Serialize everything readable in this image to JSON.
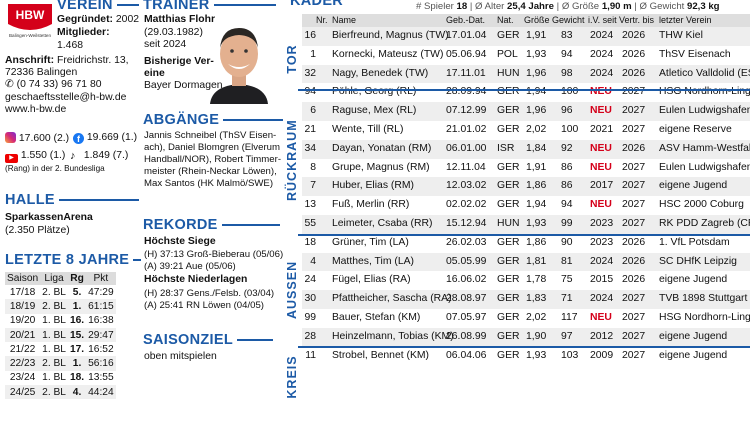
{
  "logo": {
    "text": "HBW",
    "subtext": "Balingen-Weilstetten",
    "color": "#d4001a"
  },
  "verein": {
    "heading": "VEREIN",
    "gegruendet_label": "Gegründet:",
    "gegruendet_value": "2002",
    "mitglieder_label": "Mitglieder:",
    "mitglieder_value": "1.468",
    "anschrift_label": "Anschrift:",
    "anschrift_line1": "Freidrichstr. 13,",
    "anschrift_line2": "72336 Balingen",
    "phone": "(0 74 33) 96 71 80",
    "email": "geschaeftsstelle@h-bw.de",
    "web": "www.h-bw.de",
    "social": {
      "instagram": "17.600 (2.)",
      "facebook": "19.669 (1.)",
      "youtube": "1.550 (1.)",
      "tiktok": "1.849 (7.)",
      "note": "(Rang) in der 2. Bundesliga"
    }
  },
  "halle": {
    "heading": "HALLE",
    "name": "SparkassenArena",
    "capacity": "(2.350 Plätze)"
  },
  "letzte": {
    "heading": "LETZTE 8 JAHRE",
    "columns": [
      "Saison",
      "Liga",
      "Rg",
      "Pkt"
    ],
    "rows": [
      [
        "17/18",
        "2. BL",
        "5.",
        "47:29"
      ],
      [
        "18/19",
        "2. BL",
        "1.",
        "61:15"
      ],
      [
        "19/20",
        "1. BL",
        "16.",
        "16:38"
      ],
      [
        "20/21",
        "1. BL",
        "15.",
        "29:47"
      ],
      [
        "21/22",
        "1. BL",
        "17.",
        "16:52"
      ],
      [
        "22/23",
        "2. BL",
        "1.",
        "56:16"
      ],
      [
        "23/24",
        "1. BL",
        "18.",
        "13:55"
      ],
      [
        "24/25",
        "2. BL",
        "4.",
        "44:24"
      ]
    ]
  },
  "trainer": {
    "heading": "TRAINER",
    "name": "Matthias Flohr",
    "born": "(29.03.1982)",
    "since": "seit 2024",
    "prev_label1": "Bisherige Ver-",
    "prev_label2": "eine",
    "prev_club": "Bayer Dormagen"
  },
  "abgaenge": {
    "heading": "ABGÄNGE",
    "lines": [
      "Jannis Schneibel (ThSV Eisen-",
      "ach), Daniel Blomgren (Elverum",
      "Handball/NOR), Robert Timmer-",
      "meister (Rhein-Neckar Löwen),",
      "Max Santos (HK Malmö/SWE)"
    ]
  },
  "rekorde": {
    "heading": "REKORDE",
    "siege_label": "Höchste Siege",
    "siege": [
      "(H) 37:13 Groß-Bieberau (05/06)",
      "(A) 39:21 Aue (05/06)"
    ],
    "niederlagen_label": "Höchste Niederlagen",
    "niederlagen": [
      "(H) 28:37 Gens./Felsb. (03/04)",
      "(A) 25:41 RN Löwen (04/05)"
    ]
  },
  "saisonziel": {
    "heading": "SAISONZIEL",
    "text": "oben mitspielen"
  },
  "kader": {
    "heading": "KADER",
    "summary": {
      "spieler_label": "# Spieler",
      "spieler": "18",
      "alter_label": "| Ø Alter",
      "alter": "25,4 Jahre",
      "groesse_label": "| Ø Größe",
      "groesse": "1,90 m",
      "gewicht_label": "| Ø Gewicht",
      "gewicht": "92,3 kg"
    },
    "columns": {
      "nr": "Nr.",
      "name": "Name",
      "geb": "Geb.-Dat.",
      "nat": "Nat.",
      "groesse": "Größe",
      "gewicht": "Gewicht",
      "iv": "i.V. seit",
      "vertr": "Vertr. bis",
      "verein": "letzter Verein"
    },
    "groups": {
      "tor": "TOR",
      "rueckraum": "RÜCKRAUM",
      "aussen": "AUSSEN",
      "kreis": "KREIS"
    },
    "players": [
      {
        "nr": "16",
        "name": "Bierfreund, Magnus (TW)",
        "geb": "17.01.04",
        "nat": "GER",
        "gr": "1,91",
        "gw": "83",
        "iv": "2024",
        "vb": "2026",
        "lv": "THW Kiel"
      },
      {
        "nr": "1",
        "name": "Kornecki, Mateusz (TW)",
        "geb": "05.06.94",
        "nat": "POL",
        "gr": "1,93",
        "gw": "94",
        "iv": "2024",
        "vb": "2026",
        "lv": "ThSV Eisenach"
      },
      {
        "nr": "32",
        "name": "Nagy, Benedek (TW)",
        "geb": "17.11.01",
        "nat": "HUN",
        "gr": "1,96",
        "gw": "98",
        "iv": "2024",
        "vb": "2026",
        "lv": "Atletico Valldolid (ESP)"
      },
      {
        "nr": "94",
        "name": "Pöhle, Georg (RL)",
        "geb": "28.09.94",
        "nat": "GER",
        "gr": "1,94",
        "gw": "100",
        "iv": "NEU",
        "vb": "2027",
        "lv": "HSG Nordhorn-Lingen"
      },
      {
        "nr": "6",
        "name": "Raguse, Mex (RL)",
        "geb": "07.12.99",
        "nat": "GER",
        "gr": "1,96",
        "gw": "96",
        "iv": "NEU",
        "vb": "2027",
        "lv": "Eulen Ludwigshafen"
      },
      {
        "nr": "21",
        "name": "Wente, Till (RL)",
        "geb": "21.01.02",
        "nat": "GER",
        "gr": "2,02",
        "gw": "100",
        "iv": "2021",
        "vb": "2027",
        "lv": "eigene Reserve"
      },
      {
        "nr": "34",
        "name": "Dayan, Yonatan (RM)",
        "geb": "06.01.00",
        "nat": "ISR",
        "gr": "1,84",
        "gw": "92",
        "iv": "NEU",
        "vb": "2026",
        "lv": "ASV Hamm-Westfalen"
      },
      {
        "nr": "8",
        "name": "Grupe, Magnus (RM)",
        "geb": "12.11.04",
        "nat": "GER",
        "gr": "1,91",
        "gw": "86",
        "iv": "NEU",
        "vb": "2027",
        "lv": "Eulen Ludwigshafen"
      },
      {
        "nr": "7",
        "name": "Huber, Elias (RM)",
        "geb": "12.03.02",
        "nat": "GER",
        "gr": "1,86",
        "gw": "86",
        "iv": "2017",
        "vb": "2027",
        "lv": "eigene Jugend"
      },
      {
        "nr": "13",
        "name": "Fuß, Merlin (RR)",
        "geb": "02.02.02",
        "nat": "GER",
        "gr": "1,94",
        "gw": "94",
        "iv": "NEU",
        "vb": "2027",
        "lv": "HSC 2000 Coburg"
      },
      {
        "nr": "55",
        "name": "Leimeter, Csaba (RR)",
        "geb": "15.12.94",
        "nat": "HUN",
        "gr": "1,93",
        "gw": "99",
        "iv": "2023",
        "vb": "2027",
        "lv": "RK PDD Zagreb (CRO)"
      },
      {
        "nr": "18",
        "name": "Grüner, Tim (LA)",
        "geb": "26.02.03",
        "nat": "GER",
        "gr": "1,86",
        "gw": "90",
        "iv": "2023",
        "vb": "2026",
        "lv": "1. VfL Potsdam"
      },
      {
        "nr": "4",
        "name": "Matthes, Tim (LA)",
        "geb": "05.05.99",
        "nat": "GER",
        "gr": "1,81",
        "gw": "81",
        "iv": "2024",
        "vb": "2026",
        "lv": "SC DHfK Leipzig"
      },
      {
        "nr": "24",
        "name": "Fügel, Elias (RA)",
        "geb": "16.06.02",
        "nat": "GER",
        "gr": "1,78",
        "gw": "75",
        "iv": "2015",
        "vb": "2026",
        "lv": "eigene Jugend"
      },
      {
        "nr": "30",
        "name": "Pfattheicher, Sascha (RA)",
        "geb": "28.08.97",
        "nat": "GER",
        "gr": "1,83",
        "gw": "71",
        "iv": "2024",
        "vb": "2027",
        "lv": "TVB 1898 Stuttgart"
      },
      {
        "nr": "99",
        "name": "Bauer, Stefan (KM)",
        "geb": "07.05.97",
        "nat": "GER",
        "gr": "2,02",
        "gw": "117",
        "iv": "NEU",
        "vb": "2027",
        "lv": "HSG Nordhorn-Lingen"
      },
      {
        "nr": "28",
        "name": "Heinzelmann, Tobias (KM)",
        "geb": "26.08.99",
        "nat": "GER",
        "gr": "1,90",
        "gw": "97",
        "iv": "2012",
        "vb": "2027",
        "lv": "eigene Jugend"
      },
      {
        "nr": "11",
        "name": "Strobel, Bennet (KM)",
        "geb": "06.04.06",
        "nat": "GER",
        "gr": "1,93",
        "gw": "103",
        "iv": "2009",
        "vb": "2027",
        "lv": "eigene Jugend"
      }
    ]
  }
}
